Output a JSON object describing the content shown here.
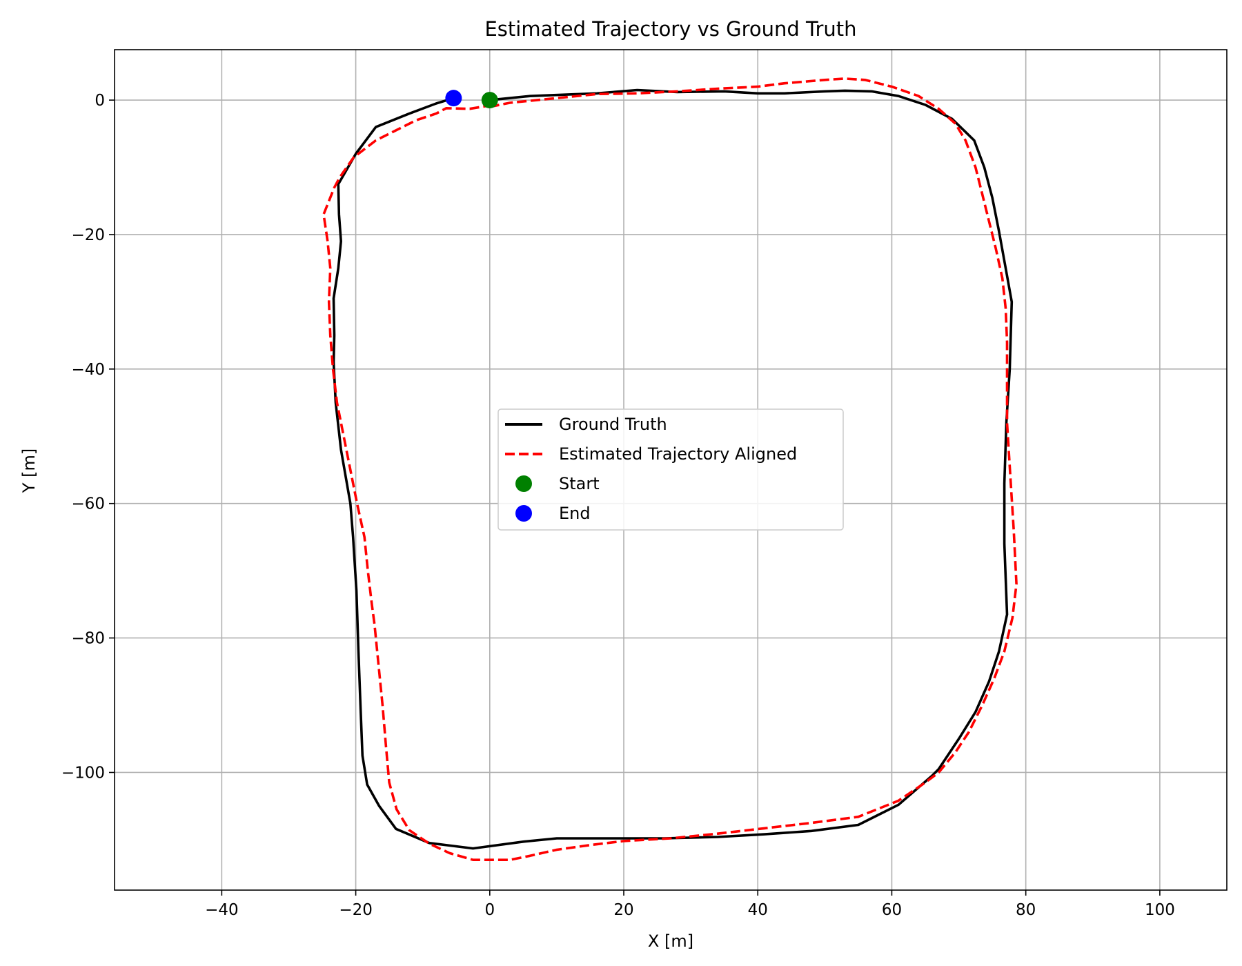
{
  "chart_data": {
    "type": "line",
    "title": "Estimated Trajectory vs Ground Truth",
    "xlabel": "X [m]",
    "ylabel": "Y [m]",
    "xlim": [
      -56,
      110
    ],
    "ylim": [
      -117.5,
      7.5
    ],
    "xticks": [
      -40,
      -20,
      0,
      20,
      40,
      60,
      80,
      100
    ],
    "yticks": [
      0,
      -20,
      -40,
      -60,
      -80,
      -100
    ],
    "grid": true,
    "legend_position": "center",
    "series": [
      {
        "name": "Ground Truth",
        "color": "#000000",
        "style": "solid",
        "points": [
          [
            0,
            0
          ],
          [
            6,
            0.6
          ],
          [
            16,
            1
          ],
          [
            22,
            1.5
          ],
          [
            28,
            1.2
          ],
          [
            35,
            1.3
          ],
          [
            40,
            1
          ],
          [
            44,
            1
          ],
          [
            50,
            1.3
          ],
          [
            53,
            1.4
          ],
          [
            57,
            1.3
          ],
          [
            61,
            0.6
          ],
          [
            65,
            -0.7
          ],
          [
            69,
            -2.8
          ],
          [
            72.3,
            -6
          ],
          [
            73.8,
            -10
          ],
          [
            75,
            -14.5
          ],
          [
            76,
            -19.5
          ],
          [
            77,
            -25
          ],
          [
            77.9,
            -30
          ],
          [
            77.6,
            -40
          ],
          [
            77.1,
            -48
          ],
          [
            76.8,
            -57
          ],
          [
            76.8,
            -66
          ],
          [
            77.2,
            -76.5
          ],
          [
            76,
            -82
          ],
          [
            74.5,
            -86.5
          ],
          [
            72.5,
            -91
          ],
          [
            70,
            -95
          ],
          [
            67,
            -99.5
          ],
          [
            66,
            -100.5
          ],
          [
            61,
            -104.8
          ],
          [
            55,
            -107.8
          ],
          [
            48,
            -108.7
          ],
          [
            41,
            -109.2
          ],
          [
            34,
            -109.6
          ],
          [
            26,
            -109.8
          ],
          [
            18,
            -109.8
          ],
          [
            10,
            -109.8
          ],
          [
            5,
            -110.3
          ],
          [
            -2.5,
            -111.3
          ],
          [
            -9,
            -110.5
          ],
          [
            -14,
            -108.4
          ],
          [
            -16.5,
            -105
          ],
          [
            -18.3,
            -101.8
          ],
          [
            -19,
            -97.5
          ],
          [
            -19.3,
            -90
          ],
          [
            -19.6,
            -82
          ],
          [
            -19.9,
            -73
          ],
          [
            -20.4,
            -65
          ],
          [
            -20.8,
            -60
          ],
          [
            -22.2,
            -52
          ],
          [
            -23,
            -45
          ],
          [
            -23.3,
            -39
          ],
          [
            -23.2,
            -35
          ],
          [
            -23.3,
            -29.5
          ],
          [
            -22.6,
            -25
          ],
          [
            -22.2,
            -21
          ],
          [
            -22.5,
            -17
          ],
          [
            -22.6,
            -12.5
          ],
          [
            -20,
            -8
          ],
          [
            -17,
            -4
          ],
          [
            -12,
            -2
          ],
          [
            -8,
            -0.5
          ],
          [
            -5.4,
            0.3
          ]
        ]
      },
      {
        "name": "Estimated Trajectory Aligned",
        "color": "#ff0000",
        "style": "dashed",
        "points": [
          [
            0,
            -1
          ],
          [
            3,
            -0.4
          ],
          [
            10,
            0.3
          ],
          [
            16,
            0.9
          ],
          [
            22,
            1
          ],
          [
            28,
            1.3
          ],
          [
            34,
            1.7
          ],
          [
            40,
            2
          ],
          [
            44,
            2.5
          ],
          [
            50,
            3
          ],
          [
            53,
            3.2
          ],
          [
            56,
            3
          ],
          [
            60,
            2
          ],
          [
            64,
            0.6
          ],
          [
            67,
            -1.3
          ],
          [
            69.5,
            -3.5
          ],
          [
            71,
            -6
          ],
          [
            72.5,
            -10
          ],
          [
            73.5,
            -14
          ],
          [
            74.5,
            -18
          ],
          [
            75.5,
            -22
          ],
          [
            76.5,
            -26.5
          ],
          [
            77,
            -31
          ],
          [
            77.2,
            -36
          ],
          [
            77.2,
            -48
          ],
          [
            77.7,
            -56
          ],
          [
            78.2,
            -64
          ],
          [
            78.6,
            -72
          ],
          [
            78,
            -77
          ],
          [
            76.8,
            -82
          ],
          [
            75.3,
            -86
          ],
          [
            73.5,
            -90
          ],
          [
            71.5,
            -94
          ],
          [
            69.5,
            -97
          ],
          [
            67,
            -100
          ],
          [
            65,
            -101.5
          ],
          [
            61,
            -104.2
          ],
          [
            55,
            -106.6
          ],
          [
            48,
            -107.5
          ],
          [
            41,
            -108.3
          ],
          [
            34,
            -109.1
          ],
          [
            27,
            -109.8
          ],
          [
            20,
            -110.2
          ],
          [
            15,
            -110.8
          ],
          [
            10,
            -111.5
          ],
          [
            6,
            -112.4
          ],
          [
            3,
            -113
          ],
          [
            -2.5,
            -113
          ],
          [
            -6,
            -112
          ],
          [
            -9,
            -110.6
          ],
          [
            -12,
            -108.6
          ],
          [
            -13.9,
            -105.5
          ],
          [
            -15,
            -101.5
          ],
          [
            -15.5,
            -96
          ],
          [
            -16,
            -90
          ],
          [
            -16.6,
            -84
          ],
          [
            -17.2,
            -78
          ],
          [
            -17.6,
            -75
          ],
          [
            -18.2,
            -70
          ],
          [
            -18.7,
            -65
          ],
          [
            -19.8,
            -60
          ],
          [
            -20.8,
            -55
          ],
          [
            -21.8,
            -50
          ],
          [
            -22.8,
            -45
          ],
          [
            -23.4,
            -40
          ],
          [
            -23.8,
            -35
          ],
          [
            -24,
            -30
          ],
          [
            -23.8,
            -25
          ],
          [
            -24.2,
            -21
          ],
          [
            -24.8,
            -17
          ],
          [
            -23.2,
            -13
          ],
          [
            -22.4,
            -11.5
          ],
          [
            -20.3,
            -8.5
          ],
          [
            -17,
            -6
          ],
          [
            -14,
            -4.5
          ],
          [
            -11,
            -3
          ],
          [
            -8,
            -2
          ],
          [
            -6.5,
            -1.2
          ],
          [
            -3,
            -1.3
          ],
          [
            0,
            -0.8
          ]
        ]
      }
    ],
    "markers": [
      {
        "name": "Start",
        "color": "#008000",
        "x": 0,
        "y": 0
      },
      {
        "name": "End",
        "color": "#0000ff",
        "x": -5.4,
        "y": 0.3
      }
    ]
  }
}
